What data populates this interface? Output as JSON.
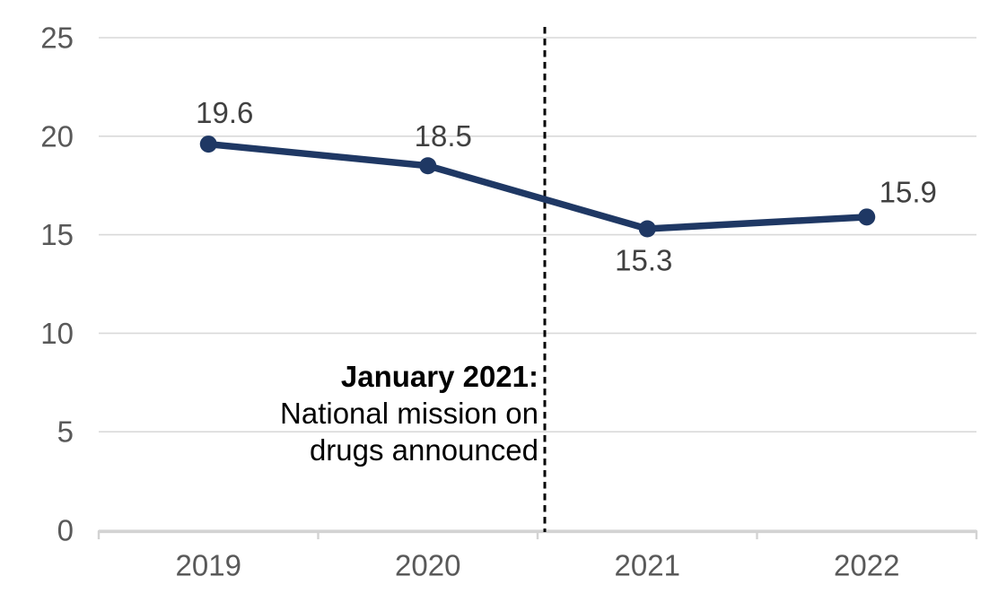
{
  "chart_data": {
    "type": "line",
    "title": "",
    "categories": [
      "2019",
      "2020",
      "2021",
      "2022"
    ],
    "series": [
      {
        "name": "rate",
        "values": [
          19.6,
          18.5,
          15.3,
          15.9
        ],
        "color": "#1f3864"
      }
    ],
    "data_labels": [
      "19.6",
      "18.5",
      "15.3",
      "15.9"
    ],
    "y_axis": {
      "ticks": [
        0,
        5,
        10,
        15,
        20,
        25
      ],
      "tick_labels": [
        "0",
        "5",
        "10",
        "15",
        "20",
        "25"
      ],
      "range": [
        0,
        25
      ],
      "label_color": "#595959"
    },
    "x_axis": {
      "tick_labels": [
        "2019",
        "2020",
        "2021",
        "2022"
      ],
      "label_color": "#595959"
    },
    "grid": {
      "show": true,
      "color": "#d9d9d9"
    },
    "axis_line_color": "#d3d3d3",
    "data_label_color": "#404040",
    "legend": "none",
    "marker_style": "filled-circle",
    "annotation": {
      "lines": [
        "January 2021:",
        "National mission on",
        "drugs announced"
      ],
      "bold_line": "January 2021:",
      "marker": "vertical-dashed-line",
      "marker_color": "#000000",
      "text_color": "#000000"
    }
  }
}
